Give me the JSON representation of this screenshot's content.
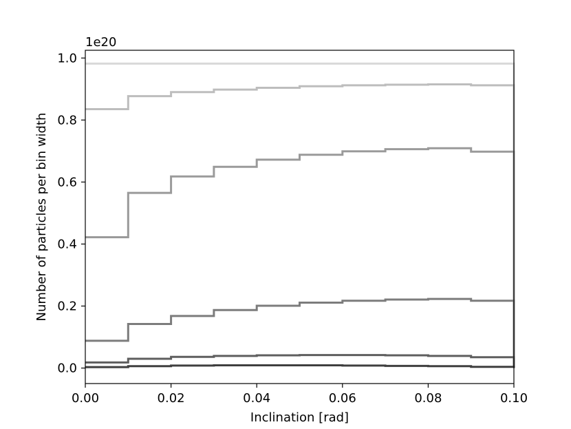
{
  "chart_data": {
    "type": "line",
    "title": "",
    "xlabel": "Inclination [rad]",
    "ylabel": "Number of particles per bin width",
    "y_offset_label": "1e20",
    "xlim": [
      0.0,
      0.1
    ],
    "ylim": [
      -0.05,
      1.025
    ],
    "x_ticks": [
      0.0,
      0.02,
      0.04,
      0.06,
      0.08,
      0.1
    ],
    "x_tick_labels": [
      "0.00",
      "0.02",
      "0.04",
      "0.06",
      "0.08",
      "0.10"
    ],
    "y_ticks": [
      0.0,
      0.2,
      0.4,
      0.6,
      0.8,
      1.0
    ],
    "y_tick_labels": [
      "0.0",
      "0.2",
      "0.4",
      "0.6",
      "0.8",
      "1.0"
    ],
    "grid": false,
    "legend": "none",
    "step_style": "histogram-step",
    "bin_edges": [
      0.0,
      0.01,
      0.02,
      0.03,
      0.04,
      0.05,
      0.06,
      0.07,
      0.08,
      0.09,
      0.1
    ],
    "series": [
      {
        "color": "#d9d9d9",
        "values": [
          0.982,
          0.982,
          0.982,
          0.982,
          0.982,
          0.982,
          0.982,
          0.982,
          0.982,
          0.982
        ]
      },
      {
        "color": "#bdbdbd",
        "values": [
          0.835,
          0.877,
          0.89,
          0.898,
          0.904,
          0.909,
          0.912,
          0.914,
          0.915,
          0.912
        ]
      },
      {
        "color": "#9a9a9a",
        "values": [
          0.422,
          0.565,
          0.618,
          0.649,
          0.672,
          0.688,
          0.699,
          0.706,
          0.709,
          0.698
        ]
      },
      {
        "color": "#7c7c7c",
        "values": [
          0.088,
          0.142,
          0.168,
          0.187,
          0.201,
          0.211,
          0.217,
          0.221,
          0.223,
          0.217
        ]
      },
      {
        "color": "#5e5e5e",
        "values": [
          0.018,
          0.03,
          0.036,
          0.039,
          0.041,
          0.042,
          0.042,
          0.041,
          0.039,
          0.035
        ]
      },
      {
        "color": "#3f3f3f",
        "values": [
          0.003,
          0.006,
          0.008,
          0.009,
          0.009,
          0.009,
          0.008,
          0.007,
          0.006,
          0.004
        ]
      }
    ]
  }
}
